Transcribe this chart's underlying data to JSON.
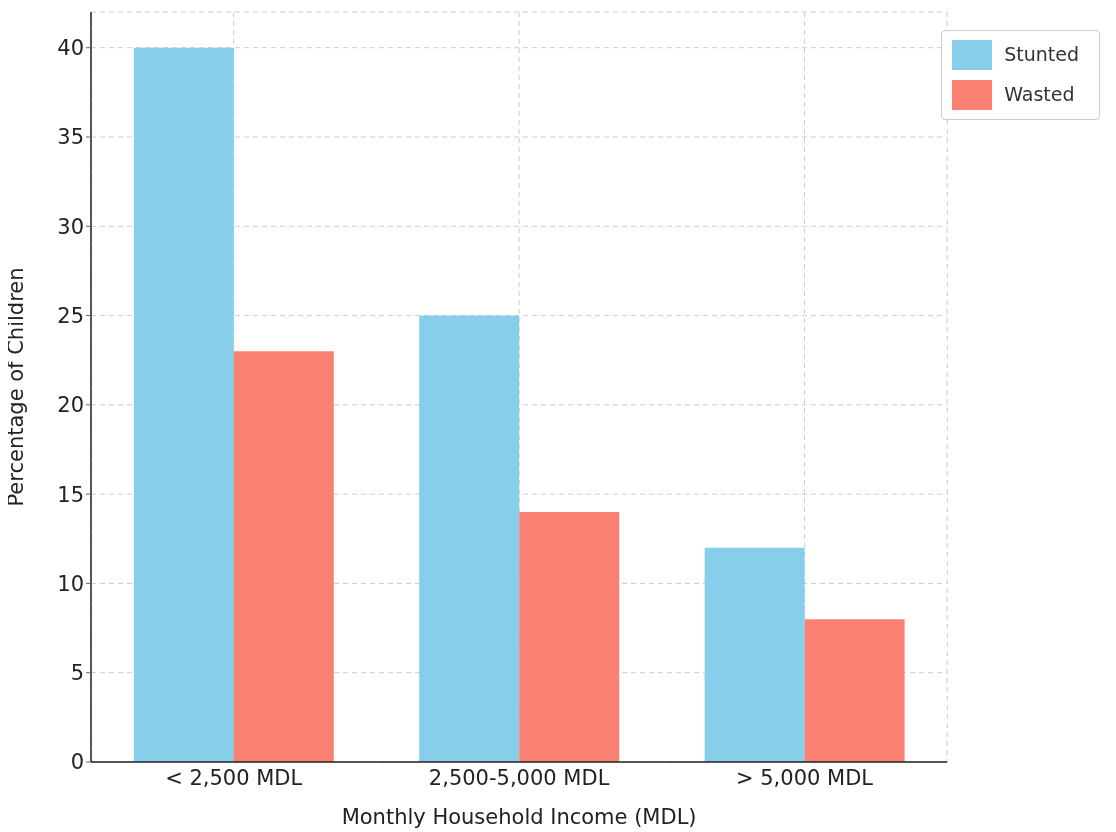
{
  "chart_data": {
    "type": "bar",
    "xlabel": "Monthly Household Income (MDL)",
    "ylabel": "Percentage of Children",
    "categories": [
      "< 2,500 MDL",
      "2,500-5,000 MDL",
      "> 5,000 MDL"
    ],
    "series": [
      {
        "name": "Stunted",
        "color": "#87ceeb",
        "values": [
          40,
          25,
          12
        ]
      },
      {
        "name": "Wasted",
        "color": "#fa8072",
        "values": [
          23,
          14,
          8
        ]
      }
    ],
    "ylim": [
      0,
      42
    ],
    "yticks": [
      0,
      5,
      10,
      15,
      20,
      25,
      30,
      35,
      40
    ],
    "grid": true,
    "legend": "top right"
  }
}
